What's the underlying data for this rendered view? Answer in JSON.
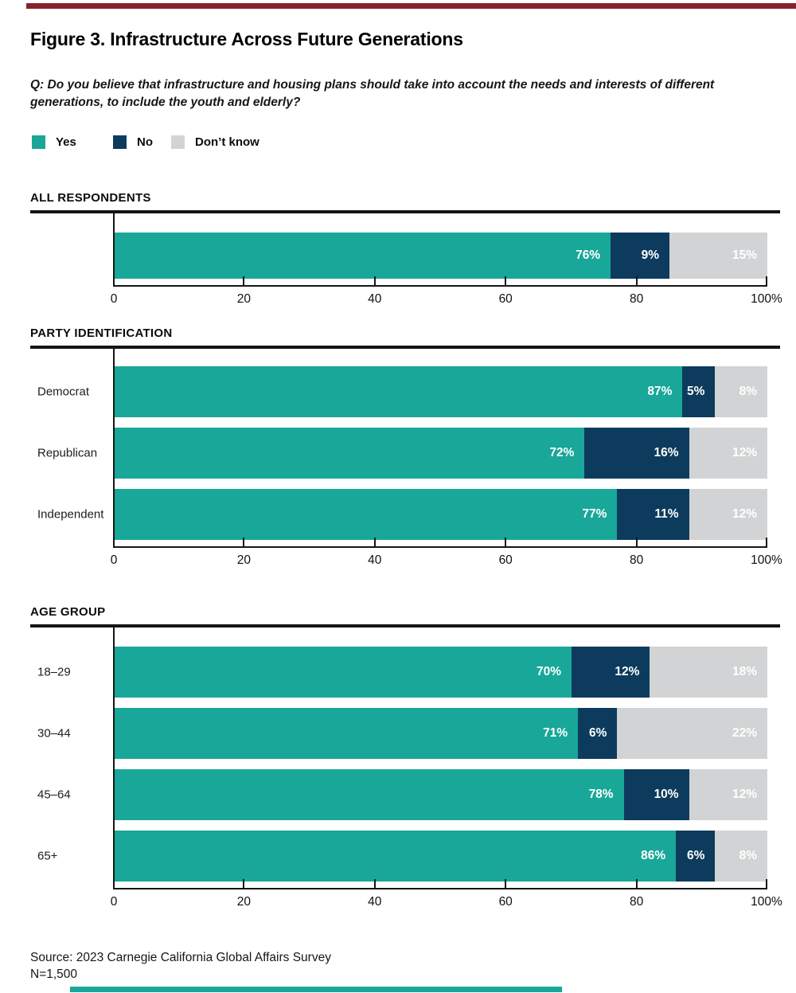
{
  "header": {
    "title": "Figure 3. Infrastructure Across Future Generations",
    "question": "Q: Do you believe that infrastructure and housing plans should take into account the needs and interests of different generations, to include the youth and elderly?"
  },
  "legend": {
    "items": [
      {
        "label": "Yes",
        "color": "#18A799"
      },
      {
        "label": "No",
        "color": "#0D3B5D"
      },
      {
        "label": "Don’t know",
        "color": "#D2D3D4"
      }
    ]
  },
  "accents": {
    "top_bar": "#86212E",
    "bottom_bar": "#18A799"
  },
  "axis": {
    "ticks": [
      "0",
      "20",
      "40",
      "60",
      "80",
      "100%"
    ]
  },
  "sections": [
    {
      "heading": "ALL RESPONDENTS",
      "rows": [
        {
          "label": "",
          "segments": [
            {
              "value": 76,
              "label": "76%"
            },
            {
              "value": 9,
              "label": "9%"
            },
            {
              "value": 15,
              "label": "15%"
            }
          ]
        }
      ]
    },
    {
      "heading": "PARTY IDENTIFICATION",
      "rows": [
        {
          "label": "Democrat",
          "segments": [
            {
              "value": 87,
              "label": "87%"
            },
            {
              "value": 5,
              "label": "5%"
            },
            {
              "value": 8,
              "label": "8%"
            }
          ]
        },
        {
          "label": "Republican",
          "segments": [
            {
              "value": 72,
              "label": "72%"
            },
            {
              "value": 16,
              "label": "16%"
            },
            {
              "value": 12,
              "label": "12%"
            }
          ]
        },
        {
          "label": "Independent",
          "segments": [
            {
              "value": 77,
              "label": "77%"
            },
            {
              "value": 11,
              "label": "11%"
            },
            {
              "value": 12,
              "label": "12%"
            }
          ]
        }
      ]
    },
    {
      "heading": "AGE GROUP",
      "rows": [
        {
          "label": "18–29",
          "segments": [
            {
              "value": 70,
              "label": "70%"
            },
            {
              "value": 12,
              "label": "12%"
            },
            {
              "value": 18,
              "label": "18%"
            }
          ]
        },
        {
          "label": "30–44",
          "segments": [
            {
              "value": 71,
              "label": "71%"
            },
            {
              "value": 6,
              "label": "6%"
            },
            {
              "value": 22,
              "label": "22%"
            }
          ]
        },
        {
          "label": "45–64",
          "segments": [
            {
              "value": 78,
              "label": "78%"
            },
            {
              "value": 10,
              "label": "10%"
            },
            {
              "value": 12,
              "label": "12%"
            }
          ]
        },
        {
          "label": "65+",
          "segments": [
            {
              "value": 86,
              "label": "86%"
            },
            {
              "value": 6,
              "label": "6%"
            },
            {
              "value": 8,
              "label": "8%"
            }
          ]
        }
      ]
    }
  ],
  "footer": {
    "source": "Source: 2023 Carnegie California Global Affairs Survey",
    "n": "N=1,500"
  },
  "chart_data": {
    "type": "bar",
    "orientation": "horizontal-stacked",
    "title": "Figure 3. Infrastructure Across Future Generations",
    "question": "Q: Do you believe that infrastructure and housing plans should take into account the needs and interests of different generations, to include the youth and elderly?",
    "legend": [
      "Yes",
      "No",
      "Don’t know"
    ],
    "legend_position": "top-left",
    "colors": {
      "Yes": "#18A799",
      "No": "#0D3B5D",
      "Don’t know": "#D2D3D4"
    },
    "xlim": [
      0,
      100
    ],
    "xticks": [
      0,
      20,
      40,
      60,
      80,
      100
    ],
    "xtick_labels": [
      "0",
      "20",
      "40",
      "60",
      "80",
      "100%"
    ],
    "grid": false,
    "value_labels": "white, bold, right-aligned inside each segment",
    "groups": [
      {
        "title": "ALL RESPONDENTS",
        "categories": [
          "All respondents"
        ],
        "series": [
          {
            "name": "Yes",
            "values": [
              76
            ]
          },
          {
            "name": "No",
            "values": [
              9
            ]
          },
          {
            "name": "Don’t know",
            "values": [
              15
            ]
          }
        ]
      },
      {
        "title": "PARTY IDENTIFICATION",
        "categories": [
          "Democrat",
          "Republican",
          "Independent"
        ],
        "series": [
          {
            "name": "Yes",
            "values": [
              87,
              72,
              77
            ]
          },
          {
            "name": "No",
            "values": [
              5,
              16,
              11
            ]
          },
          {
            "name": "Don’t know",
            "values": [
              8,
              12,
              12
            ]
          }
        ]
      },
      {
        "title": "AGE GROUP",
        "categories": [
          "18–29",
          "30–44",
          "45–64",
          "65+"
        ],
        "series": [
          {
            "name": "Yes",
            "values": [
              70,
              71,
              78,
              86
            ]
          },
          {
            "name": "No",
            "values": [
              12,
              6,
              10,
              6
            ]
          },
          {
            "name": "Don’t know",
            "values": [
              18,
              22,
              12,
              8
            ]
          }
        ]
      }
    ],
    "source": "Source: 2023 Carnegie California Global Affairs Survey",
    "n": "N=1,500"
  }
}
